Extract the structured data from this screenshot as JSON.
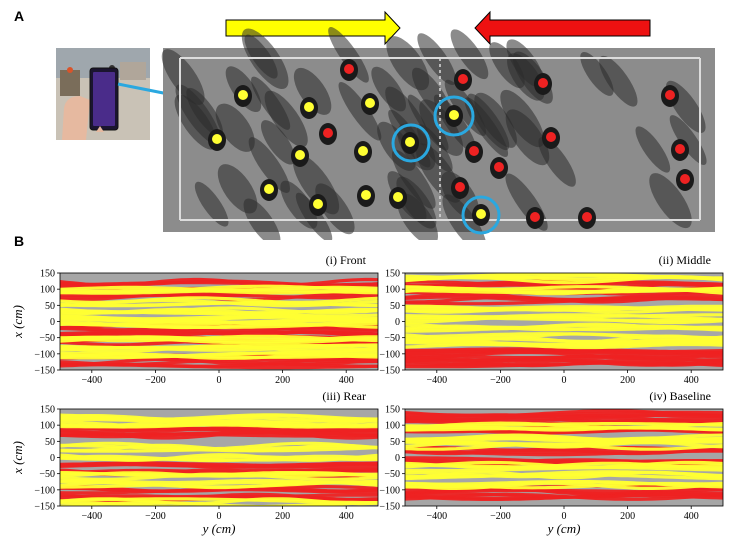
{
  "figure": {
    "panel_a_label": "A",
    "panel_b_label": "B",
    "colors": {
      "yellow_group": "#ffff33",
      "red_group": "#ee2222",
      "background_gray": "#a6a6a6",
      "highlight_circle": "#2aa8e0",
      "floor_dark": "#2b2b2b",
      "floor_light": "#9a9a9a"
    },
    "arrows": [
      {
        "direction": "right",
        "color": "#ffff00"
      },
      {
        "direction": "left",
        "color": "#ee1111"
      }
    ],
    "phone_inset": {
      "device": "smartphone",
      "screen_color": "#4a2c8a"
    }
  },
  "chart_data": [
    {
      "type": "line",
      "title": "(i) Front",
      "xlabel": "",
      "ylabel": "x (cm)",
      "xlim": [
        -500,
        500
      ],
      "ylim": [
        -150,
        150
      ],
      "xticks": [
        "−400",
        "−200",
        "0",
        "200",
        "400"
      ],
      "yticks": [
        "150",
        "100",
        "50",
        "0",
        "−50",
        "−100",
        "−150"
      ],
      "series": [
        {
          "group": "red",
          "lanes_cm": [
            115,
            80,
            -20,
            -40,
            -60,
            -110,
            -130
          ]
        },
        {
          "group": "yellow",
          "lanes_cm": [
            100,
            60,
            30,
            10,
            -10,
            -50,
            -80,
            -100
          ]
        }
      ]
    },
    {
      "type": "line",
      "title": "(ii) Middle",
      "xlabel": "",
      "ylabel": "",
      "xlim": [
        -500,
        500
      ],
      "ylim": [
        -150,
        150
      ],
      "xticks": [
        "−400",
        "−200",
        "0",
        "200",
        "400"
      ],
      "yticks": [
        "150",
        "100",
        "50",
        "0",
        "−50",
        "−100",
        "−150"
      ],
      "series": [
        {
          "group": "red",
          "lanes_cm": [
            110,
            90,
            70,
            -90,
            -110,
            -130
          ]
        },
        {
          "group": "yellow",
          "lanes_cm": [
            130,
            100,
            40,
            10,
            -20,
            -50,
            -70
          ]
        }
      ]
    },
    {
      "type": "line",
      "title": "(iii) Rear",
      "xlabel": "y (cm)",
      "ylabel": "x (cm)",
      "xlim": [
        -500,
        500
      ],
      "ylim": [
        -150,
        150
      ],
      "xticks": [
        "−400",
        "−200",
        "0",
        "200",
        "400"
      ],
      "yticks": [
        "150",
        "100",
        "50",
        "0",
        "−50",
        "−100",
        "−150"
      ],
      "series": [
        {
          "group": "red",
          "lanes_cm": [
            85,
            65,
            -20,
            -45,
            -100,
            -125
          ]
        },
        {
          "group": "yellow",
          "lanes_cm": [
            120,
            100,
            30,
            5,
            -60,
            -80,
            -140
          ]
        }
      ]
    },
    {
      "type": "line",
      "title": "(iv) Baseline",
      "xlabel": "y (cm)",
      "ylabel": "",
      "xlim": [
        -500,
        500
      ],
      "ylim": [
        -150,
        150
      ],
      "xticks": [
        "−400",
        "−200",
        "0",
        "200",
        "400"
      ],
      "yticks": [
        "150",
        "100",
        "50",
        "0",
        "−50",
        "−100",
        "−150"
      ],
      "series": [
        {
          "group": "red",
          "lanes_cm": [
            130,
            110,
            80,
            20,
            -10,
            -100,
            -125
          ]
        },
        {
          "group": "yellow",
          "lanes_cm": [
            95,
            55,
            40,
            -30,
            -55,
            -80
          ]
        }
      ]
    }
  ]
}
